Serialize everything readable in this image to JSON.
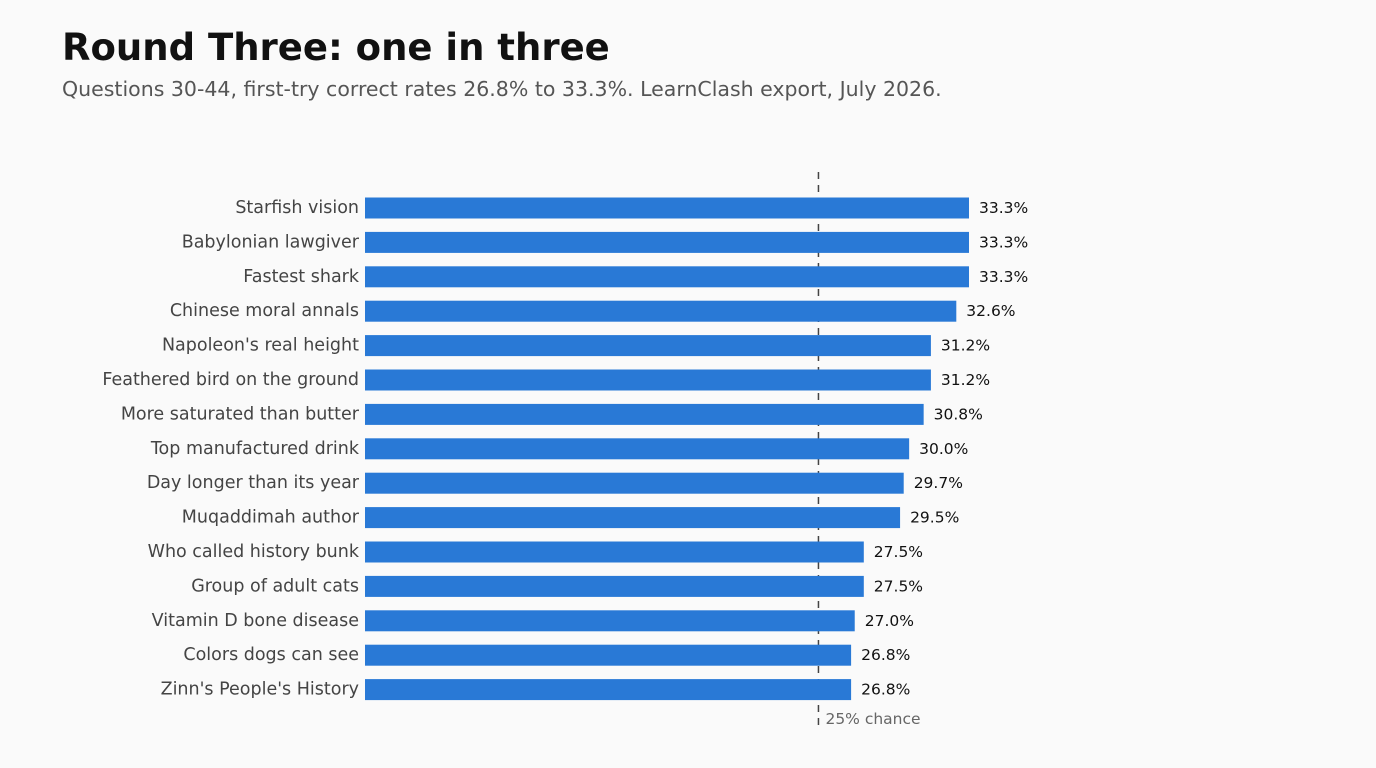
{
  "header": {
    "title": "Round Three: one in three",
    "subtitle": "Questions 30-44, first-try correct rates 26.8% to 33.3%. LearnClash export, July 2026."
  },
  "chart_data": {
    "type": "bar",
    "orientation": "horizontal",
    "title": "Round Three: one in three",
    "subtitle": "Questions 30-44, first-try correct rates 26.8% to 33.3%. LearnClash export, July 2026.",
    "xlabel": "",
    "ylabel": "",
    "xlim": [
      0,
      33.3
    ],
    "grid": false,
    "legend": "none",
    "bar_color": "#2979d6",
    "value_suffix": "%",
    "categories": [
      "Starfish vision",
      "Babylonian lawgiver",
      "Fastest shark",
      "Chinese moral annals",
      "Napoleon's real height",
      "Feathered bird on the ground",
      "More saturated than butter",
      "Top manufactured drink",
      "Day longer than its year",
      "Muqaddimah author",
      "Who called history bunk",
      "Group of adult cats",
      "Vitamin D bone disease",
      "Colors dogs can see",
      "Zinn's People's History"
    ],
    "values": [
      33.3,
      33.3,
      33.3,
      32.6,
      31.2,
      31.2,
      30.8,
      30.0,
      29.7,
      29.5,
      27.5,
      27.5,
      27.0,
      26.8,
      26.8
    ],
    "value_labels": [
      "33.3%",
      "33.3%",
      "33.3%",
      "32.6%",
      "31.2%",
      "31.2%",
      "30.8%",
      "30.0%",
      "29.7%",
      "29.5%",
      "27.5%",
      "27.5%",
      "27.0%",
      "26.8%",
      "26.8%"
    ],
    "reference_line": {
      "value": 25,
      "label": "25% chance",
      "style": "dashed",
      "color": "#444444"
    }
  }
}
